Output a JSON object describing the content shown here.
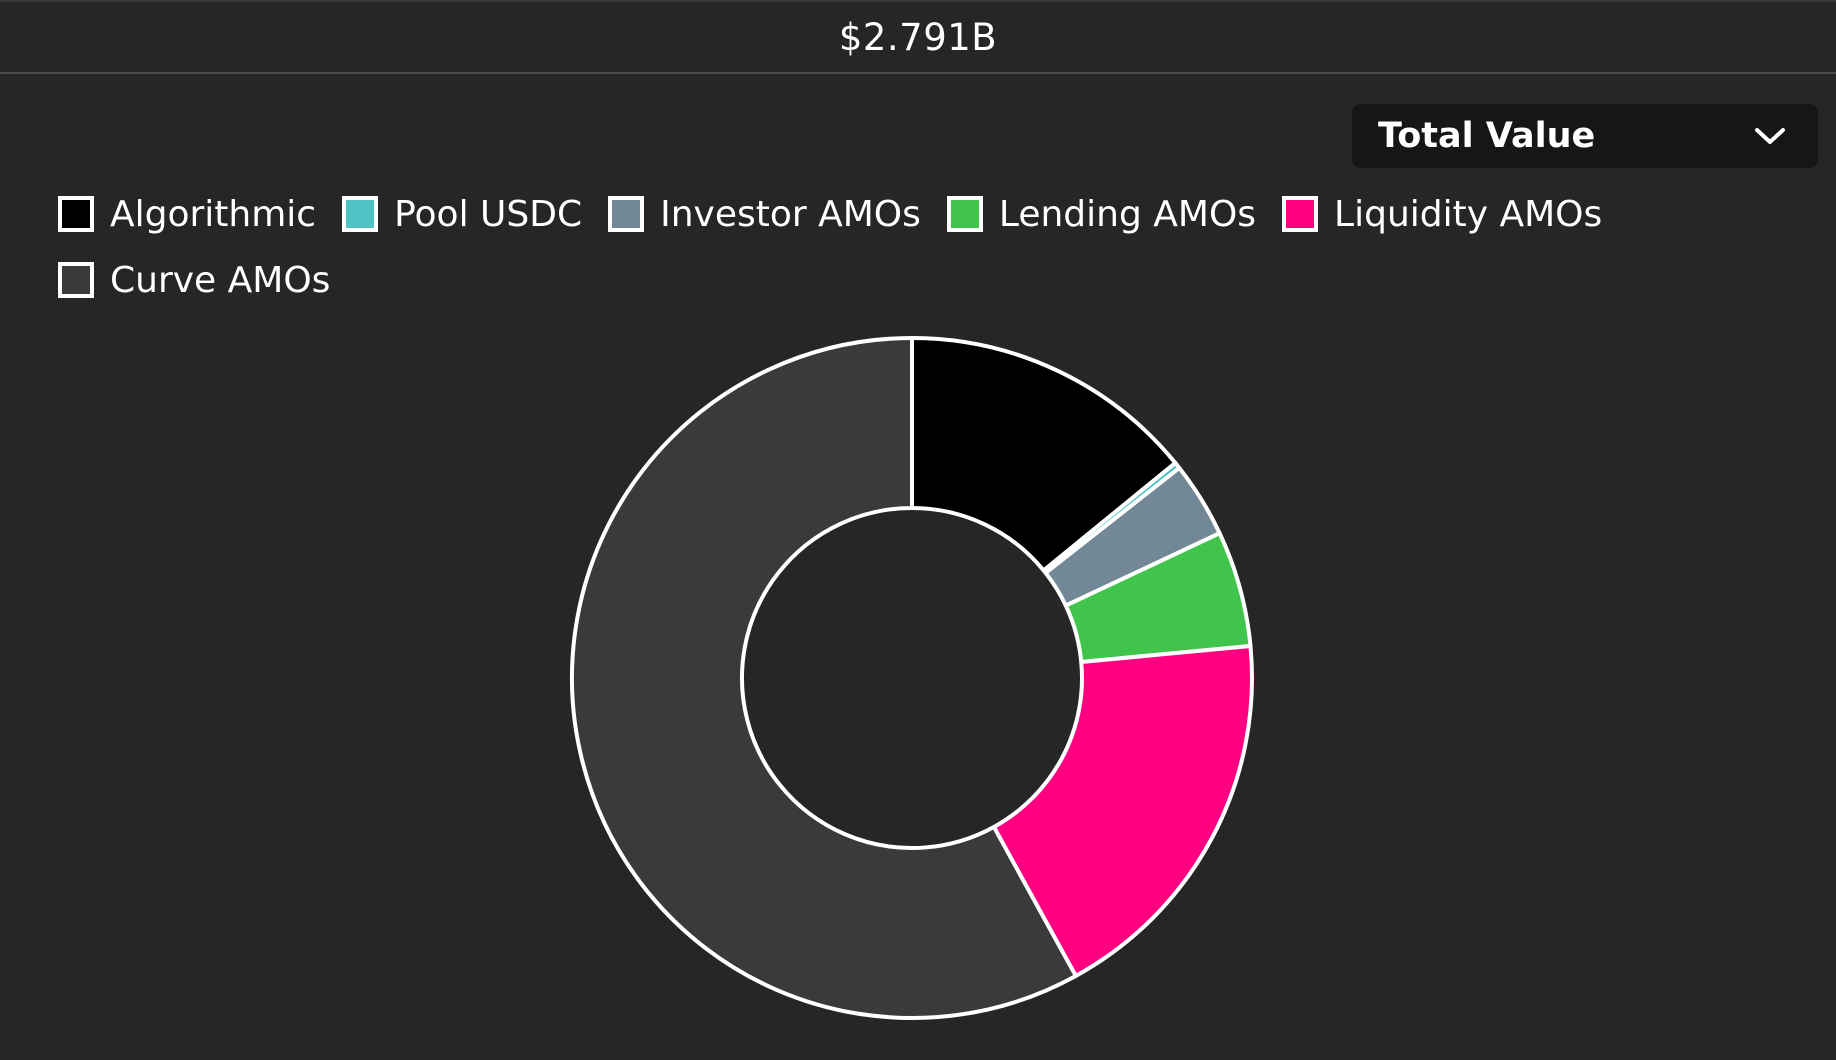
{
  "header": {
    "total": "$2.791B"
  },
  "selector": {
    "label": "Total Value",
    "icon": "chevron-down-icon"
  },
  "legend": [
    {
      "name": "Algorithmic",
      "color": "#000000"
    },
    {
      "name": "Pool USDC",
      "color": "#4fc3c4"
    },
    {
      "name": "Investor AMOs",
      "color": "#728896"
    },
    {
      "name": "Lending AMOs",
      "color": "#40c44b"
    },
    {
      "name": "Liquidity AMOs",
      "color": "#ff0080"
    },
    {
      "name": "Curve AMOs",
      "color": "#3a3a3a"
    }
  ],
  "chart_data": {
    "type": "pie",
    "donut": true,
    "categories": [
      "Algorithmic",
      "Pool USDC",
      "Investor AMOs",
      "Lending AMOs",
      "Liquidity AMOs",
      "Curve AMOs"
    ],
    "values": [
      14.1,
      0.3,
      3.6,
      5.5,
      18.5,
      58.0
    ],
    "unit": "percent (estimated share of $2.791B)",
    "colors": [
      "#000000",
      "#4fc3c4",
      "#728896",
      "#40c44b",
      "#ff0080",
      "#3a3a3a"
    ],
    "start_angle": "top (12 o'clock)",
    "direction": "clockwise",
    "legend_position": "top-left"
  }
}
